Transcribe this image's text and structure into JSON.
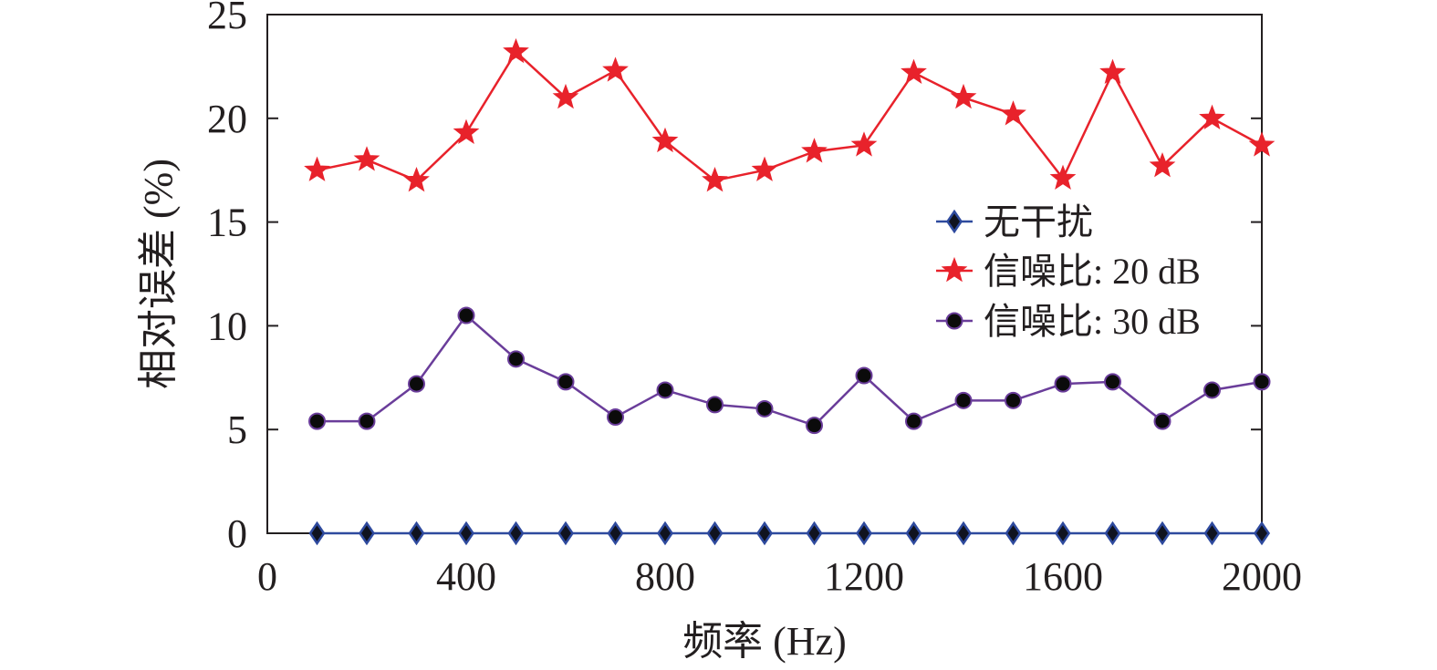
{
  "chart_data": {
    "type": "line",
    "xlabel": "频率 (Hz)",
    "ylabel": "相对误差 (%)",
    "xlim": [
      0,
      2000
    ],
    "ylim": [
      0,
      25
    ],
    "xticks": [
      0,
      400,
      800,
      1200,
      1600,
      2000
    ],
    "yticks": [
      0,
      5,
      10,
      15,
      20,
      25
    ],
    "x": [
      100,
      200,
      300,
      400,
      500,
      600,
      700,
      800,
      900,
      1000,
      1100,
      1200,
      1300,
      1400,
      1500,
      1600,
      1700,
      1800,
      1900,
      2000
    ],
    "series": [
      {
        "name": "无干扰",
        "marker": "diamond",
        "color": "#2e4a9e",
        "values": [
          0,
          0,
          0,
          0,
          0,
          0,
          0,
          0,
          0,
          0,
          0,
          0,
          0,
          0,
          0,
          0,
          0,
          0,
          0,
          0
        ]
      },
      {
        "name": "信噪比: 20 dB",
        "marker": "star",
        "color": "#e8222b",
        "values": [
          17.5,
          18.0,
          17.0,
          19.3,
          23.2,
          21.0,
          22.3,
          18.9,
          17.0,
          17.5,
          18.4,
          18.7,
          22.2,
          21.0,
          20.2,
          17.1,
          22.2,
          17.7,
          20.0,
          18.7
        ]
      },
      {
        "name": "信噪比: 30 dB",
        "marker": "circle",
        "color": "#6a3d9a",
        "values": [
          5.4,
          5.4,
          7.2,
          10.5,
          8.4,
          7.3,
          5.6,
          6.9,
          6.2,
          6.0,
          5.2,
          7.6,
          5.4,
          6.4,
          6.4,
          7.2,
          7.3,
          5.4,
          6.9,
          7.3
        ]
      }
    ],
    "legend_position": "right-middle",
    "grid": false
  }
}
